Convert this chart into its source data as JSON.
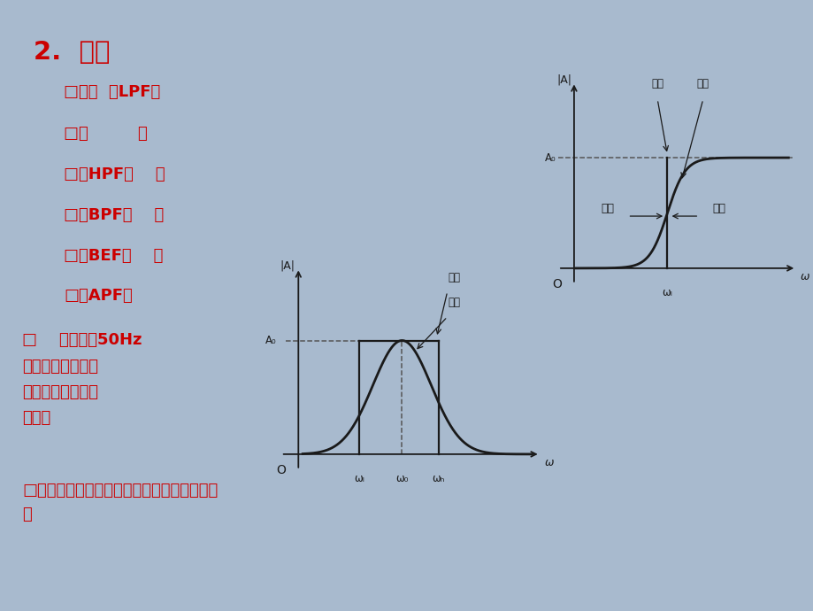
{
  "bg_color": "#a8bace",
  "title": "2.  分类",
  "title_color": "#cc0000",
  "red": "#cc0000",
  "black": "#1a1a1a",
  "items": [
    "□低通  （LPF）",
    "□高         通",
    "□（HPF）    通",
    "□（BPF）    阻",
    "□（BEF）    通",
    "□（APF）"
  ],
  "q1_line1": "□    希望抑制50Hz",
  "q1_line2": "的干扰信号，应选",
  "q1_line3": "用哪种类型的滤波",
  "q1_line4": "电路？",
  "q2": "□放大音频信号，应选用哪种类型的滤波电路",
  "q2_line2": "？",
  "hpf_A0_label": "A₀",
  "hpf_omL_label": "ωₗ",
  "hpf_om_label": "ω",
  "hpf_A_label": "|A|",
  "hpf_O_label": "O",
  "hpf_lixiang": "理想",
  "hpf_shiji": "实际",
  "hpf_zudai": "阻带",
  "hpf_tongdai": "通带",
  "bpf_A0_label": "A₀",
  "bpf_omL_label": "ωₗ",
  "bpf_om0_label": "ω₀",
  "bpf_omH_label": "ωₕ",
  "bpf_om_label": "ω",
  "bpf_A_label": "|A|",
  "bpf_O_label": "O",
  "bpf_lixiang": "理想",
  "bpf_shiji": "实际"
}
